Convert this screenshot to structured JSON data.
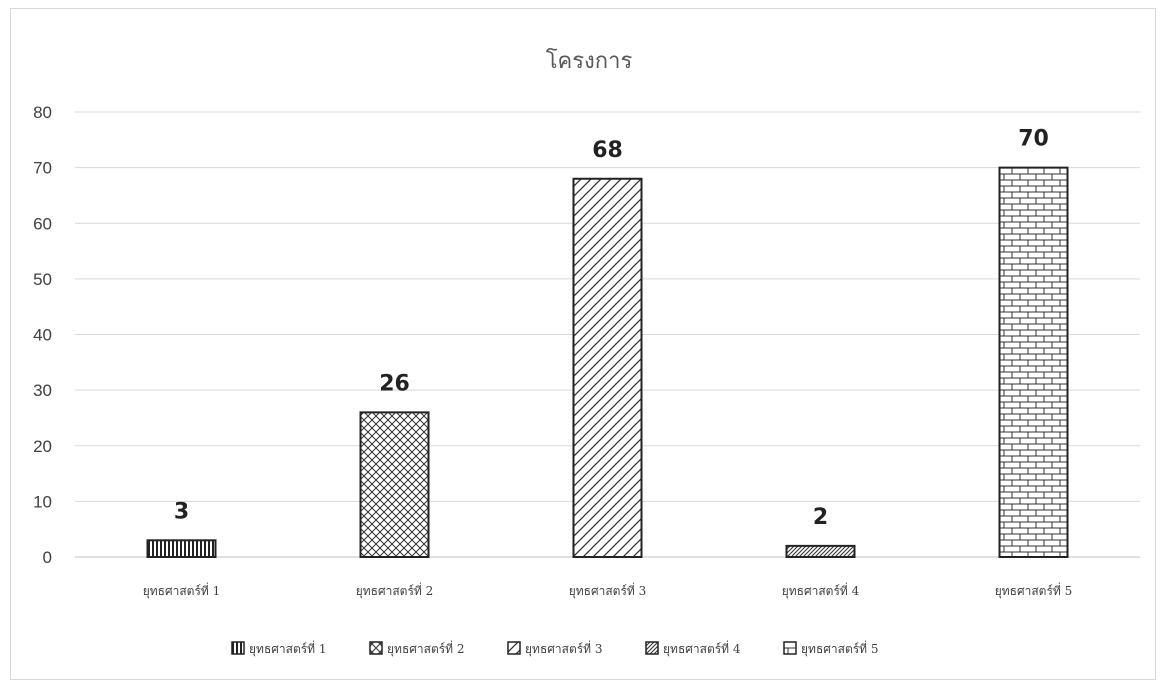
{
  "chart_data": {
    "type": "bar",
    "title": "โครงการ",
    "categories": [
      "ยุทธศาสตร์ที่ 1",
      "ยุทธศาสตร์ที่ 2",
      "ยุทธศาสตร์ที่ 3",
      "ยุทธศาสตร์ที่ 4",
      "ยุทธศาสตร์ที่ 5"
    ],
    "values": [
      3,
      26,
      68,
      2,
      70
    ],
    "data_labels": [
      "3",
      "26",
      "68",
      "2",
      "70"
    ],
    "ylim": [
      0,
      80
    ],
    "yticks": [
      "0",
      "10",
      "20",
      "30",
      "40",
      "50",
      "60",
      "70",
      "80"
    ],
    "xlabel": "",
    "ylabel": "",
    "grid": true,
    "legend_position": "bottom",
    "legend": [
      "ยุทธศาสตร์ที่ 1",
      "ยุทธศาสตร์ที่ 2",
      "ยุทธศาสตร์ที่ 3",
      "ยุทธศาสตร์ที่ 4",
      "ยุทธศาสตร์ที่ 5"
    ],
    "patterns": [
      "vertical-stripes",
      "crosshatch",
      "diagonal-wide",
      "diagonal-narrow",
      "brick"
    ],
    "colors": {
      "bar_fill": "#ffffff",
      "bar_stroke": "#222222",
      "grid": "#d9d9d9",
      "text": "#404040"
    }
  }
}
